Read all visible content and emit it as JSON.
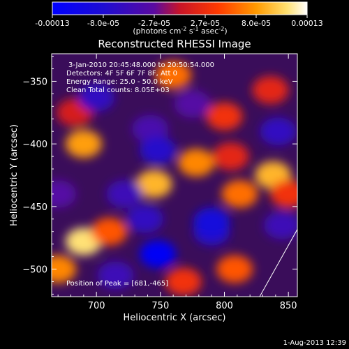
{
  "chart_data": {
    "type": "heatmap",
    "title": "Reconstructed RHESSI Image",
    "xlabel": "Heliocentric X (arcsec)",
    "ylabel": "Heliocentric Y (arcsec)",
    "xlim": [
      665,
      857
    ],
    "ylim": [
      -522,
      -328
    ],
    "x_ticks": [
      700,
      750,
      800,
      850
    ],
    "y_ticks": [
      -350,
      -400,
      -450,
      -500
    ],
    "colorbar": {
      "ticks": [
        "-0.00013",
        "-8.0e-05",
        "-2.7e-05",
        "2.7e-05",
        "8.0e-05",
        "0.00013"
      ],
      "label_main": "(photons cm",
      "label_exp1": "-2",
      "label_mid": " s",
      "label_exp2": "-1",
      "label_end": " asec",
      "label_exp3": "-2",
      "label_close": ")",
      "vmin": -0.00013,
      "vmax": 0.00013
    },
    "annotations": [
      "3-Jan-2010 20:45:48.000 to 20:50:54.000",
      "Detectors: 4F 5F 6F 7F 8F, Att 0",
      "Energy Range: 25.0 - 50.0 keV",
      "Clean    Total counts: 8.05E+03"
    ],
    "peak_label": "Position of Peak = [681,-465]",
    "footer_date": "1-Aug-2013 12:39",
    "blobs": [
      {
        "x": 683,
        "y": -375,
        "v": 1e-05
      },
      {
        "x": 760,
        "y": -345,
        "v": 6e-05
      },
      {
        "x": 742,
        "y": -388,
        "v": -4e-05
      },
      {
        "x": 700,
        "y": -363,
        "v": -6e-05
      },
      {
        "x": 800,
        "y": -378,
        "v": 3e-05
      },
      {
        "x": 748,
        "y": -405,
        "v": -7e-05
      },
      {
        "x": 778,
        "y": -415,
        "v": 7e-05
      },
      {
        "x": 745,
        "y": -432,
        "v": 9e-05
      },
      {
        "x": 690,
        "y": -400,
        "v": 8e-05
      },
      {
        "x": 842,
        "y": -390,
        "v": -6e-05
      },
      {
        "x": 838,
        "y": -425,
        "v": 9e-05
      },
      {
        "x": 836,
        "y": -357,
        "v": 2e-05
      },
      {
        "x": 812,
        "y": -440,
        "v": 6e-05
      },
      {
        "x": 722,
        "y": -440,
        "v": -5e-05
      },
      {
        "x": 670,
        "y": -440,
        "v": -3e-05
      },
      {
        "x": 738,
        "y": -460,
        "v": -6e-05
      },
      {
        "x": 790,
        "y": -470,
        "v": -7e-05
      },
      {
        "x": 790,
        "y": -462,
        "v": -9e-05
      },
      {
        "x": 690,
        "y": -478,
        "v": 0.00011
      },
      {
        "x": 710,
        "y": -470,
        "v": 5e-05
      },
      {
        "x": 748,
        "y": -488,
        "v": -0.00012
      },
      {
        "x": 715,
        "y": -505,
        "v": -5e-05
      },
      {
        "x": 768,
        "y": -510,
        "v": 3e-05
      },
      {
        "x": 808,
        "y": -500,
        "v": 5e-05
      },
      {
        "x": 845,
        "y": -465,
        "v": -5e-05
      },
      {
        "x": 850,
        "y": -440,
        "v": 3e-05
      },
      {
        "x": 670,
        "y": -500,
        "v": 7e-05
      },
      {
        "x": 775,
        "y": -368,
        "v": -3e-05
      },
      {
        "x": 805,
        "y": -410,
        "v": 2e-05
      }
    ]
  }
}
